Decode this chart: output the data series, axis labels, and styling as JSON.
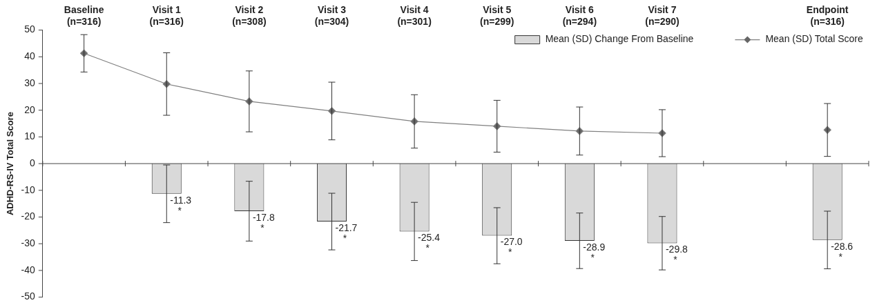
{
  "chart_data": {
    "type": "bar",
    "ylabel": "ADHD-RS-IV Total Score",
    "categories": [
      "Baseline (n=316)",
      "Visit 1 (n=316)",
      "Visit 2 (n=308)",
      "Visit 3 (n=304)",
      "Visit 4 (n=301)",
      "Visit 5 (n=299)",
      "Visit 6 (n=294)",
      "Visit 7 (n=290)",
      null,
      "Endpoint (n=316)"
    ],
    "ylim": [
      -50,
      50
    ],
    "yticks": [
      -50,
      -40,
      -30,
      -20,
      -10,
      0,
      10,
      20,
      30,
      40,
      50
    ],
    "grid": false,
    "ref_lines": [
      {
        "axis": "y",
        "value": 0,
        "color": "#444444"
      }
    ],
    "legend": "top right",
    "marker": "diamond",
    "series": [
      {
        "name": "Mean (SD) Change From Baseline",
        "color": "#d9d9d9",
        "values": [
          null,
          -11.3,
          -17.8,
          -21.7,
          -25.4,
          -27.0,
          -28.9,
          -29.8,
          null,
          -28.6
        ],
        "errors": [
          null,
          10.8,
          11.2,
          10.6,
          10.9,
          10.5,
          10.4,
          10.0,
          null,
          10.8
        ],
        "value_labels": [
          null,
          "-11.3",
          "-17.8",
          "-21.7",
          "-25.4",
          "-27.0",
          "-28.9",
          "-29.8",
          null,
          "-28.6"
        ]
      },
      {
        "name": "Mean (SD) Total Score",
        "type": "line",
        "color": "#7f7f7f",
        "values": [
          41.3,
          29.8,
          23.3,
          19.7,
          15.8,
          14.0,
          12.2,
          11.4,
          null,
          12.6
        ],
        "errors": [
          7.0,
          11.7,
          11.4,
          10.8,
          10.0,
          9.7,
          9.0,
          8.8,
          null,
          9.9
        ]
      }
    ],
    "annotations": [
      "*",
      "*",
      "*",
      "*",
      "*",
      "*",
      "*",
      "*"
    ]
  }
}
